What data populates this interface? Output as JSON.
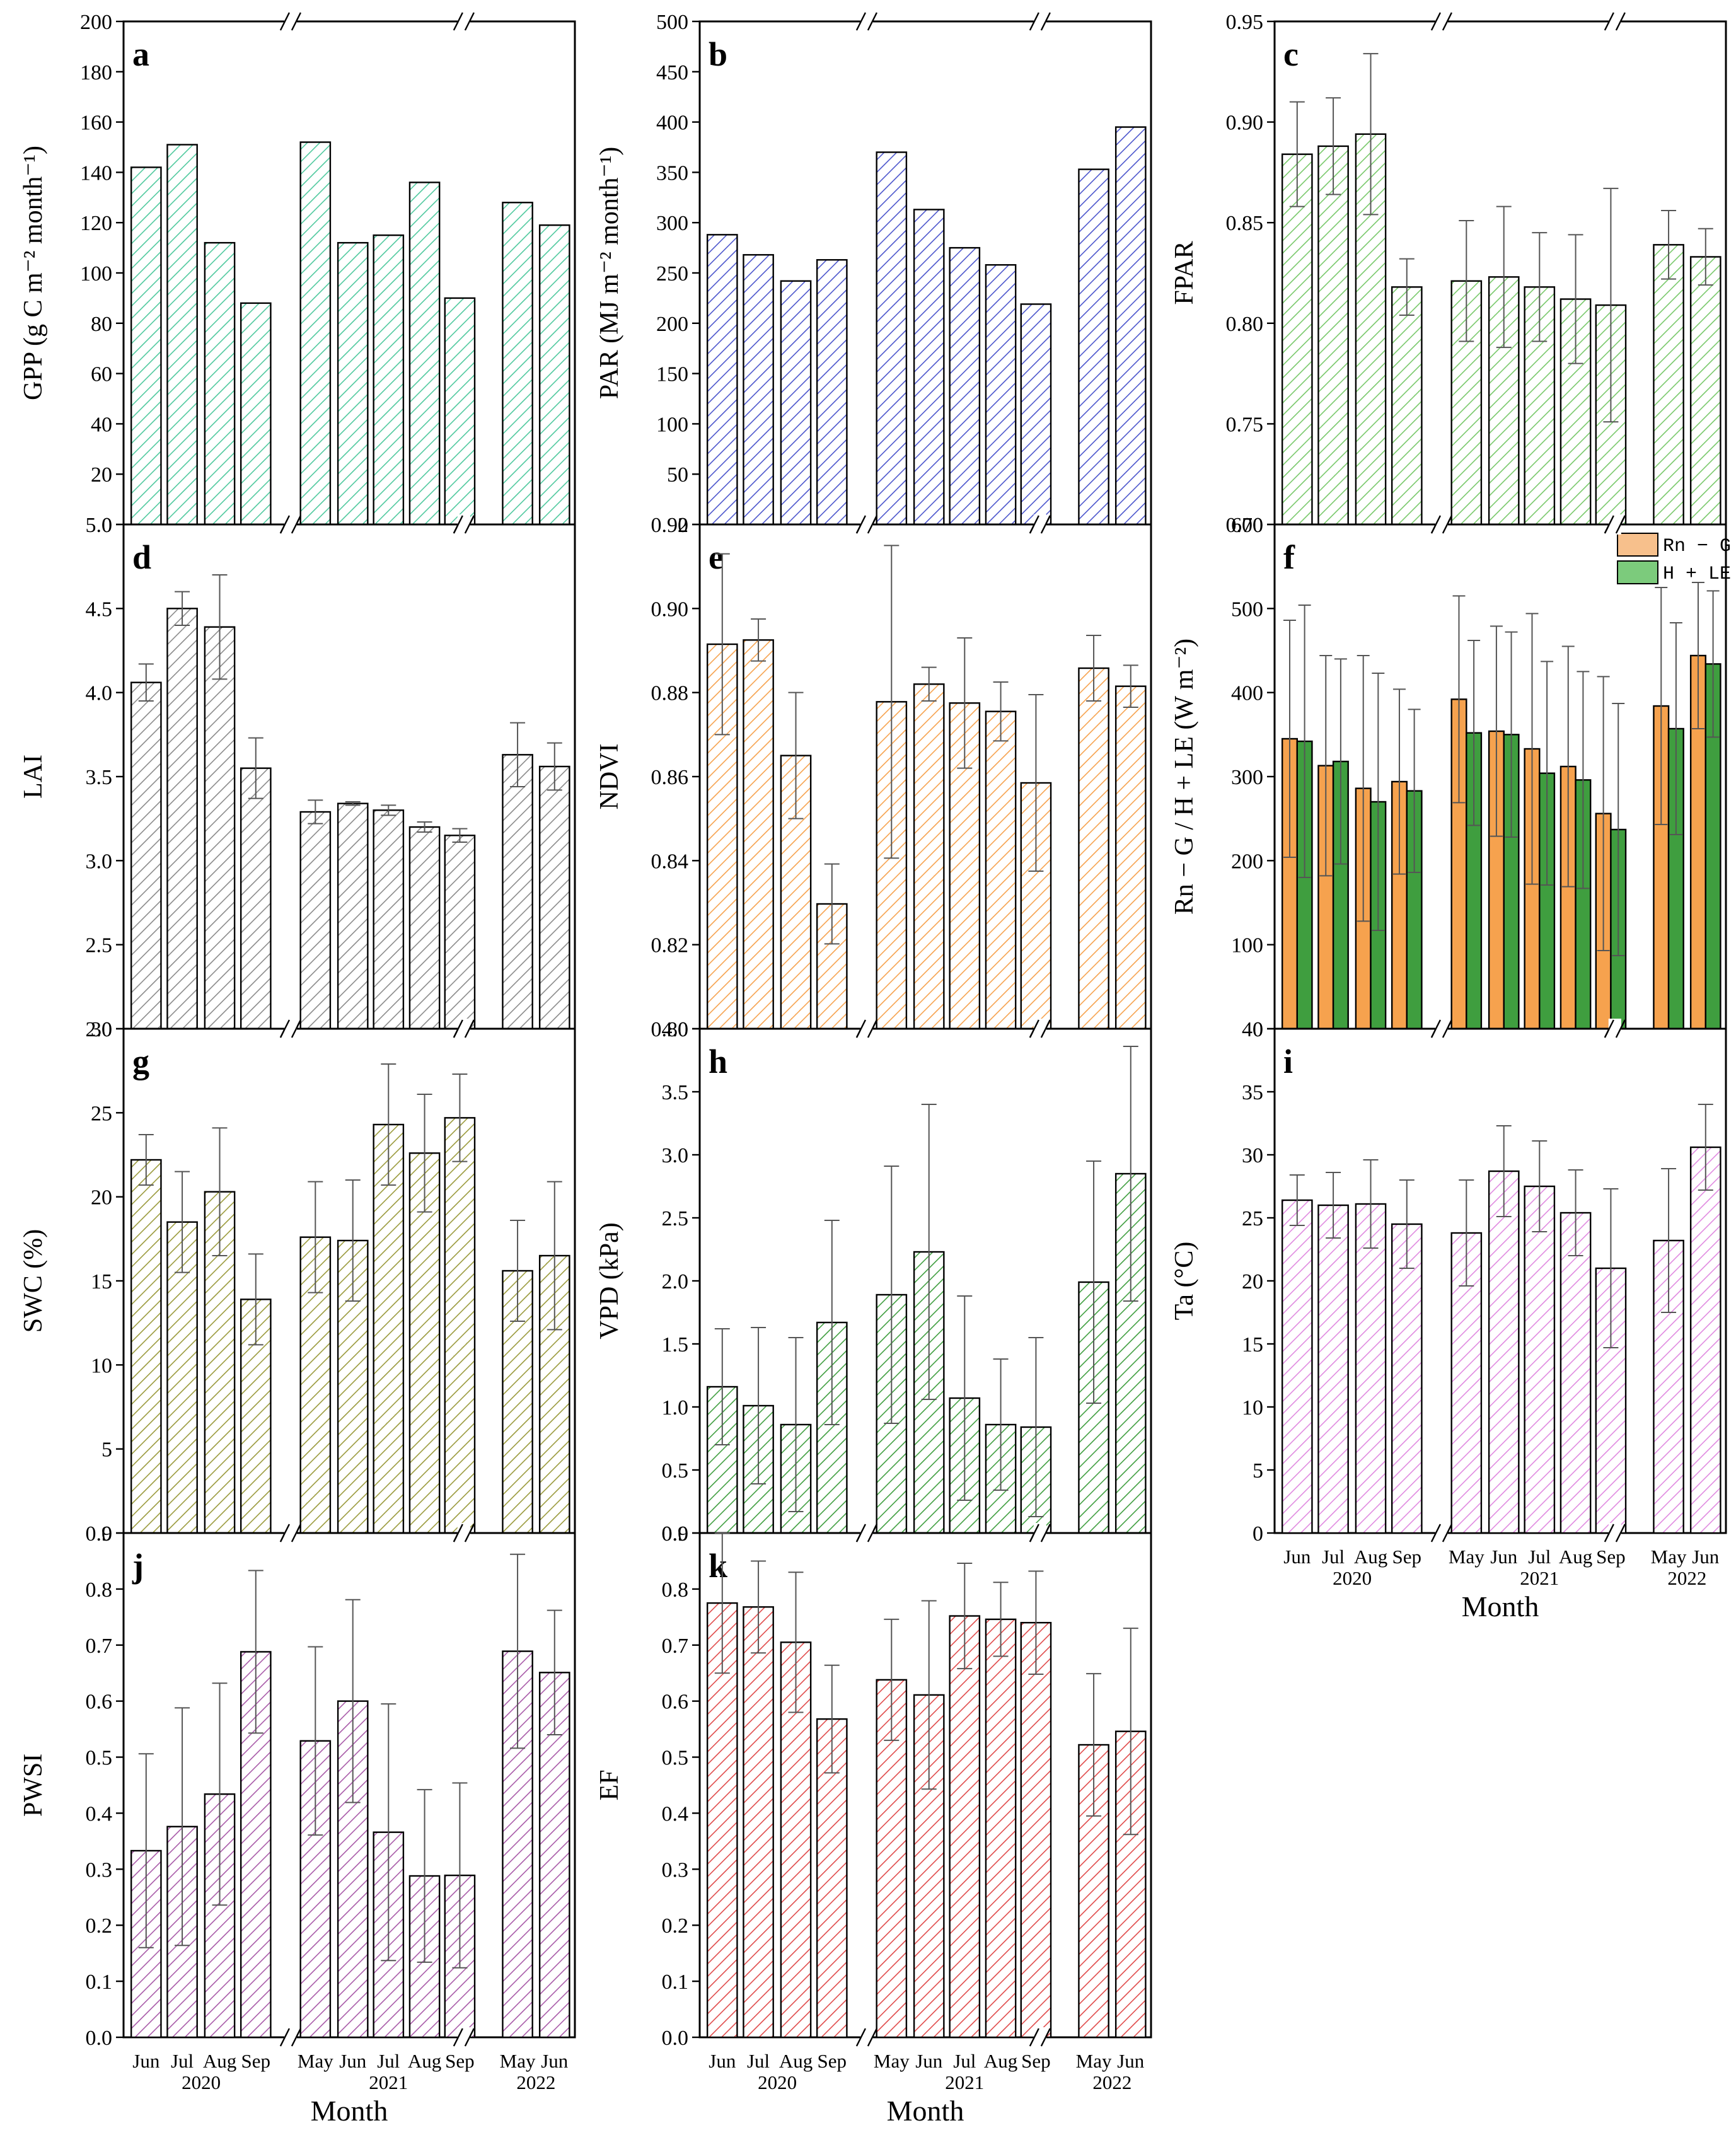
{
  "colors": {
    "green": "#4fc99e",
    "blue": "#4b55cc",
    "lightgreen": "#78c86a",
    "gray": "#8a8a8a",
    "orange": "#f6a24e",
    "olive": "#9a9a3c",
    "darkgreen": "#3f9e3f",
    "pink": "#e08ae0",
    "purple": "#a85aa8",
    "red": "#e04a4a",
    "legend_orange": "#f7c08c",
    "legend_green": "#7ccb7c"
  },
  "shared": {
    "categories": [
      "Jun",
      "Jul",
      "Aug",
      "Sep",
      "May",
      "Jun",
      "Jul",
      "Aug",
      "Sep",
      "May",
      "Jun"
    ],
    "years": [
      "2020",
      "2021",
      "2022"
    ],
    "xlabel": "Month"
  },
  "chart_data": [
    {
      "id": "a",
      "label": "a",
      "type": "bar",
      "ylabel": "GPP (g C m⁻² month⁻¹)",
      "ylim": [
        0,
        200
      ],
      "yticks": [
        "0",
        "20",
        "40",
        "60",
        "80",
        "100",
        "120",
        "140",
        "160",
        "180",
        "200"
      ],
      "color": "green",
      "values": [
        142,
        151,
        112,
        88,
        152,
        112,
        115,
        136,
        90,
        128,
        119
      ]
    },
    {
      "id": "b",
      "label": "b",
      "type": "bar",
      "ylabel": "PAR (MJ m⁻² month⁻¹)",
      "ylim": [
        0,
        500
      ],
      "yticks": [
        "0",
        "50",
        "100",
        "150",
        "200",
        "250",
        "300",
        "350",
        "400",
        "450",
        "500"
      ],
      "color": "blue",
      "values": [
        288,
        268,
        242,
        263,
        370,
        313,
        275,
        258,
        219,
        353,
        395
      ]
    },
    {
      "id": "c",
      "label": "c",
      "type": "bar",
      "ylabel": "FPAR",
      "ylim": [
        0.7,
        0.95
      ],
      "yticks": [
        "0.70",
        "0.75",
        "0.80",
        "0.85",
        "0.90",
        "0.95"
      ],
      "color": "lightgreen",
      "values": [
        0.884,
        0.888,
        0.894,
        0.818,
        0.821,
        0.823,
        0.818,
        0.812,
        0.809,
        0.839,
        0.833
      ],
      "errors": [
        0.026,
        0.024,
        0.04,
        0.014,
        0.03,
        0.035,
        0.027,
        0.032,
        0.058,
        0.017,
        0.014
      ]
    },
    {
      "id": "d",
      "label": "d",
      "type": "bar",
      "ylabel": "LAI",
      "ylim": [
        2.0,
        5.0
      ],
      "yticks": [
        "2.0",
        "2.5",
        "3.0",
        "3.5",
        "4.0",
        "4.5",
        "5.0"
      ],
      "color": "gray",
      "values": [
        4.06,
        4.5,
        4.39,
        3.55,
        3.29,
        3.34,
        3.3,
        3.2,
        3.15,
        3.63,
        3.56
      ],
      "errors": [
        0.11,
        0.1,
        0.31,
        0.18,
        0.07,
        0.01,
        0.03,
        0.03,
        0.04,
        0.19,
        0.14
      ]
    },
    {
      "id": "e",
      "label": "e",
      "type": "bar",
      "ylabel": "NDVI",
      "ylim": [
        0.8,
        0.92
      ],
      "yticks": [
        "0.80",
        "0.82",
        "0.84",
        "0.86",
        "0.88",
        "0.90",
        "0.92"
      ],
      "color": "orange",
      "values": [
        0.8915,
        0.8925,
        0.865,
        0.8297,
        0.8778,
        0.882,
        0.8775,
        0.8755,
        0.8585,
        0.8858,
        0.8815
      ],
      "errors": [
        0.0215,
        0.005,
        0.015,
        0.0095,
        0.0372,
        0.004,
        0.0155,
        0.007,
        0.021,
        0.0078,
        0.005
      ]
    },
    {
      "id": "f",
      "label": "f",
      "type": "groupbar",
      "ylabel": "Rn − G / H + LE (W m⁻²)",
      "ylim": [
        0,
        600
      ],
      "yticks": [
        "0",
        "100",
        "200",
        "300",
        "400",
        "500",
        "600"
      ],
      "legend": [
        "Rn − G",
        "H + LE"
      ],
      "series": [
        {
          "name": "Rn − G",
          "color": "orange",
          "values": [
            345,
            313,
            286,
            294,
            392,
            354,
            333,
            312,
            256,
            384,
            444
          ],
          "errors": [
            141,
            131,
            158,
            110,
            123,
            125,
            161,
            143,
            163,
            141,
            87
          ]
        },
        {
          "name": "H + LE",
          "color": "darkgreen",
          "values": [
            342,
            318,
            270,
            283,
            352,
            350,
            304,
            296,
            237,
            357,
            434
          ],
          "errors": [
            162,
            122,
            153,
            97,
            110,
            122,
            133,
            129,
            150,
            126,
            87
          ]
        }
      ]
    },
    {
      "id": "g",
      "label": "g",
      "type": "bar",
      "ylabel": "SWC (%)",
      "ylim": [
        0,
        30
      ],
      "yticks": [
        "0",
        "5",
        "10",
        "15",
        "20",
        "25",
        "30"
      ],
      "color": "olive",
      "values": [
        22.2,
        18.5,
        20.3,
        13.9,
        17.6,
        17.4,
        24.3,
        22.6,
        24.7,
        15.6,
        16.5
      ],
      "errors": [
        1.5,
        3.0,
        3.8,
        2.7,
        3.3,
        3.6,
        3.6,
        3.5,
        2.6,
        3.0,
        4.4
      ]
    },
    {
      "id": "h",
      "label": "h",
      "type": "bar",
      "ylabel": "VPD (kPa)",
      "ylim": [
        0,
        4.0
      ],
      "yticks": [
        "0.0",
        "0.5",
        "1.0",
        "1.5",
        "2.0",
        "2.5",
        "3.0",
        "3.5",
        "4.0"
      ],
      "color": "darkgreen",
      "values": [
        1.16,
        1.01,
        0.86,
        1.67,
        1.89,
        2.23,
        1.07,
        0.86,
        0.84,
        1.99,
        2.85
      ],
      "errors": [
        0.46,
        0.62,
        0.69,
        0.81,
        1.02,
        1.17,
        0.81,
        0.52,
        0.71,
        0.96,
        1.01
      ]
    },
    {
      "id": "i",
      "label": "i",
      "type": "bar",
      "ylabel": "Ta (°C)",
      "ylim": [
        0,
        40
      ],
      "yticks": [
        "0",
        "5",
        "10",
        "15",
        "20",
        "25",
        "30",
        "35",
        "40"
      ],
      "color": "pink",
      "values": [
        26.4,
        26.0,
        26.1,
        24.5,
        23.8,
        28.7,
        27.5,
        25.4,
        21.0,
        23.2,
        30.6
      ],
      "errors": [
        2.0,
        2.6,
        3.5,
        3.5,
        4.2,
        3.6,
        3.6,
        3.4,
        6.3,
        5.7,
        3.4
      ]
    },
    {
      "id": "j",
      "label": "j",
      "type": "bar",
      "ylabel": "PWSI",
      "ylim": [
        0,
        0.9
      ],
      "yticks": [
        "0.0",
        "0.1",
        "0.2",
        "0.3",
        "0.4",
        "0.5",
        "0.6",
        "0.7",
        "0.8",
        "0.9"
      ],
      "color": "purple",
      "values": [
        0.333,
        0.376,
        0.434,
        0.688,
        0.529,
        0.6,
        0.366,
        0.288,
        0.289,
        0.689,
        0.651
      ],
      "errors": [
        0.173,
        0.212,
        0.198,
        0.145,
        0.168,
        0.181,
        0.229,
        0.154,
        0.165,
        0.173,
        0.111
      ]
    },
    {
      "id": "k",
      "label": "k",
      "type": "bar",
      "ylabel": "EF",
      "ylim": [
        0,
        0.9
      ],
      "yticks": [
        "0.0",
        "0.1",
        "0.2",
        "0.3",
        "0.4",
        "0.5",
        "0.6",
        "0.7",
        "0.8",
        "0.9"
      ],
      "color": "red",
      "values": [
        0.775,
        0.768,
        0.705,
        0.568,
        0.638,
        0.611,
        0.752,
        0.746,
        0.74,
        0.522,
        0.546
      ],
      "errors": [
        0.125,
        0.082,
        0.125,
        0.096,
        0.108,
        0.168,
        0.094,
        0.066,
        0.092,
        0.127,
        0.184
      ]
    }
  ]
}
